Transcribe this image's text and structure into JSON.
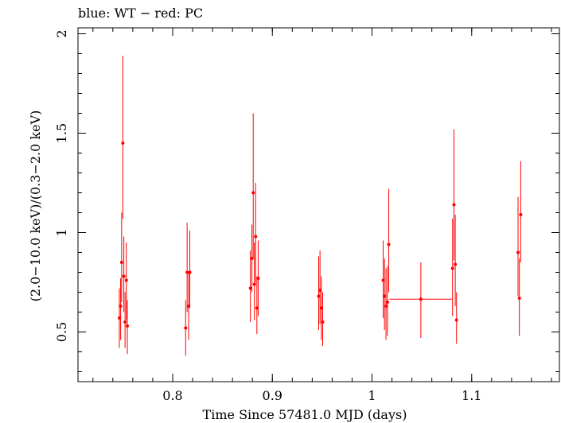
{
  "chart_data": {
    "type": "scatter",
    "title": "blue: WT − red: PC",
    "xlabel": "Time Since 57481.0 MJD (days)",
    "ylabel": "(2.0−10.0 keV)/(0.3−2.0 keV)",
    "xlim": [
      0.705,
      1.188
    ],
    "ylim": [
      0.25,
      2.03
    ],
    "x_ticks": [
      0.8,
      0.9,
      1,
      1.1
    ],
    "x_tick_labels": [
      "0.8",
      "0.9",
      "1",
      "1.1"
    ],
    "y_ticks": [
      0.5,
      1,
      1.5,
      2
    ],
    "y_tick_labels": [
      "0.5",
      "1",
      "1.5",
      "2"
    ],
    "grid": false,
    "series": [
      {
        "color": "#ff0000",
        "points": [
          {
            "x": 0.7465,
            "y": 0.57,
            "ylo": 0.42,
            "yhi": 0.72
          },
          {
            "x": 0.7478,
            "y": 0.63,
            "ylo": 0.46,
            "yhi": 0.77
          },
          {
            "x": 0.7488,
            "y": 0.85,
            "ylo": 0.65,
            "yhi": 1.1
          },
          {
            "x": 0.75,
            "y": 1.45,
            "ylo": 1.07,
            "yhi": 1.89
          },
          {
            "x": 0.751,
            "y": 0.78,
            "ylo": 0.6,
            "yhi": 0.98
          },
          {
            "x": 0.7522,
            "y": 0.55,
            "ylo": 0.42,
            "yhi": 0.7
          },
          {
            "x": 0.7535,
            "y": 0.76,
            "ylo": 0.56,
            "yhi": 0.95
          },
          {
            "x": 0.7545,
            "y": 0.53,
            "ylo": 0.39,
            "yhi": 0.66
          },
          {
            "x": 0.813,
            "y": 0.52,
            "ylo": 0.38,
            "yhi": 0.66
          },
          {
            "x": 0.8145,
            "y": 0.8,
            "ylo": 0.6,
            "yhi": 1.05
          },
          {
            "x": 0.816,
            "y": 0.63,
            "ylo": 0.46,
            "yhi": 0.8
          },
          {
            "x": 0.8172,
            "y": 0.8,
            "ylo": 0.62,
            "yhi": 1.01
          },
          {
            "x": 0.878,
            "y": 0.72,
            "ylo": 0.55,
            "yhi": 0.91
          },
          {
            "x": 0.8795,
            "y": 0.87,
            "ylo": 0.7,
            "yhi": 1.04
          },
          {
            "x": 0.8808,
            "y": 1.2,
            "ylo": 0.87,
            "yhi": 1.6
          },
          {
            "x": 0.882,
            "y": 0.74,
            "ylo": 0.56,
            "yhi": 0.95
          },
          {
            "x": 0.8832,
            "y": 0.98,
            "ylo": 0.75,
            "yhi": 1.25
          },
          {
            "x": 0.8845,
            "y": 0.62,
            "ylo": 0.49,
            "yhi": 0.78
          },
          {
            "x": 0.8858,
            "y": 0.77,
            "ylo": 0.58,
            "yhi": 0.96
          },
          {
            "x": 0.9465,
            "y": 0.68,
            "ylo": 0.51,
            "yhi": 0.88
          },
          {
            "x": 0.9478,
            "y": 0.71,
            "ylo": 0.54,
            "yhi": 0.91
          },
          {
            "x": 0.9492,
            "y": 0.62,
            "ylo": 0.46,
            "yhi": 0.78
          },
          {
            "x": 0.9505,
            "y": 0.55,
            "ylo": 0.43,
            "yhi": 0.7
          },
          {
            "x": 1.0112,
            "y": 0.76,
            "ylo": 0.57,
            "yhi": 0.96
          },
          {
            "x": 1.0125,
            "y": 0.68,
            "ylo": 0.51,
            "yhi": 0.87
          },
          {
            "x": 1.014,
            "y": 0.63,
            "ylo": 0.46,
            "yhi": 0.82
          },
          {
            "x": 1.0155,
            "y": 0.65,
            "ylo": 0.48,
            "yhi": 0.83
          },
          {
            "x": 1.0168,
            "y": 0.94,
            "ylo": 0.7,
            "yhi": 1.22
          },
          {
            "x": 1.049,
            "y": 0.665,
            "ylo": 0.47,
            "yhi": 0.85,
            "xlo": 1.0175,
            "xhi": 1.08
          },
          {
            "x": 1.0808,
            "y": 0.82,
            "ylo": 0.58,
            "yhi": 1.07
          },
          {
            "x": 1.0822,
            "y": 1.14,
            "ylo": 0.86,
            "yhi": 1.52
          },
          {
            "x": 1.0835,
            "y": 0.84,
            "ylo": 0.63,
            "yhi": 1.09
          },
          {
            "x": 1.0848,
            "y": 0.56,
            "ylo": 0.44,
            "yhi": 0.7
          },
          {
            "x": 1.1465,
            "y": 0.9,
            "ylo": 0.68,
            "yhi": 1.18
          },
          {
            "x": 1.1478,
            "y": 0.67,
            "ylo": 0.48,
            "yhi": 0.87
          },
          {
            "x": 1.1492,
            "y": 1.09,
            "ylo": 0.85,
            "yhi": 1.36
          }
        ]
      }
    ]
  }
}
